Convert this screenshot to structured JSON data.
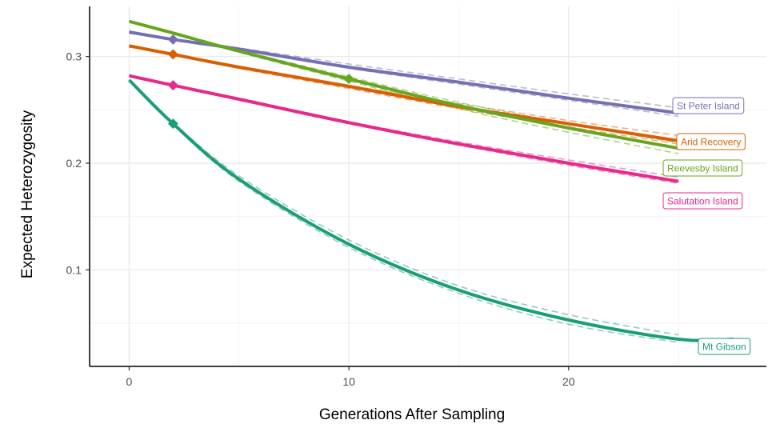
{
  "chart_data": {
    "type": "line",
    "xlabel": "Generations After Sampling",
    "ylabel": "Expected Heterozygosity",
    "xlim": [
      -1.8,
      29.0
    ],
    "ylim": [
      0.0095,
      0.347
    ],
    "x_ticks": [
      0,
      10,
      20
    ],
    "y_ticks": [
      0.1,
      0.2,
      0.3
    ],
    "x_tick_labels": [
      "0",
      "10",
      "20"
    ],
    "y_tick_labels": [
      "0.1",
      "0.2",
      "0.3"
    ],
    "grid": true,
    "legend": "direct labels at line ends (right)",
    "series": [
      {
        "name": "St Peter Island",
        "color": "#7570b3",
        "x": [
          0,
          2,
          5,
          10,
          15,
          20,
          25
        ],
        "y": [
          0.323,
          0.316,
          0.307,
          0.29,
          0.276,
          0.261,
          0.247
        ],
        "marker": {
          "x": 2,
          "y": 0.316
        },
        "sim_upper": [
          0.322,
          0.316,
          0.308,
          0.293,
          0.279,
          0.265,
          0.252
        ],
        "sim_lower": [
          0.322,
          0.316,
          0.306,
          0.289,
          0.274,
          0.259,
          0.244
        ]
      },
      {
        "name": "Arid Recovery",
        "color": "#d95f02",
        "x": [
          0,
          2,
          5,
          10,
          15,
          20,
          25
        ],
        "y": [
          0.31,
          0.302,
          0.29,
          0.272,
          0.253,
          0.237,
          0.221
        ],
        "marker": {
          "x": 2,
          "y": 0.302
        },
        "sim_upper": [
          0.309,
          0.302,
          0.291,
          0.273,
          0.256,
          0.24,
          0.226
        ],
        "sim_lower": [
          0.309,
          0.302,
          0.289,
          0.27,
          0.251,
          0.234,
          0.218
        ]
      },
      {
        "name": "Reevesby Island",
        "color": "#66a61e",
        "x": [
          0,
          2,
          5,
          10,
          15,
          20,
          25
        ],
        "y": [
          0.333,
          0.322,
          0.305,
          0.279,
          0.254,
          0.233,
          0.214
        ],
        "marker": {
          "x": 10,
          "y": 0.279
        },
        "sim_upper": [
          0.333,
          0.322,
          0.306,
          0.281,
          0.257,
          0.237,
          0.219
        ],
        "sim_lower": [
          0.333,
          0.322,
          0.304,
          0.277,
          0.251,
          0.229,
          0.209
        ]
      },
      {
        "name": "Salutation Island",
        "color": "#e7298a",
        "x": [
          0,
          2,
          5,
          10,
          15,
          20,
          25
        ],
        "y": [
          0.282,
          0.273,
          0.26,
          0.238,
          0.218,
          0.2,
          0.183
        ],
        "marker": {
          "x": 2,
          "y": 0.273
        },
        "sim_upper": [
          0.282,
          0.273,
          0.261,
          0.239,
          0.22,
          0.203,
          0.187
        ],
        "sim_lower": [
          0.282,
          0.273,
          0.259,
          0.237,
          0.217,
          0.198,
          0.181
        ]
      },
      {
        "name": "Mt Gibson",
        "color": "#1b9e77",
        "x": [
          0,
          2,
          5,
          10,
          15,
          20,
          25,
          27.5
        ],
        "y": [
          0.278,
          0.237,
          0.185,
          0.124,
          0.081,
          0.053,
          0.035,
          0.035
        ],
        "marker": {
          "x": 2,
          "y": 0.237
        },
        "sim_upper": [
          0.278,
          0.238,
          0.188,
          0.128,
          0.085,
          0.058,
          0.039
        ],
        "sim_lower": [
          0.278,
          0.236,
          0.183,
          0.121,
          0.078,
          0.049,
          0.032
        ]
      }
    ]
  }
}
